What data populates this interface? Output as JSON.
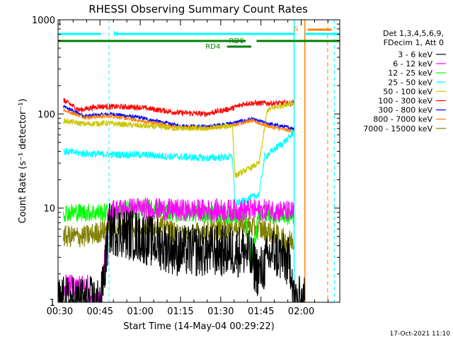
{
  "chart_data": {
    "type": "line",
    "title": "RHESSI Observing Summary Count Rates",
    "xlabel": "Start Time (14-May-04 00:29:22)",
    "ylabel": "Count Rate (s⁻¹ detector⁻¹)",
    "yscale": "log",
    "ylim": [
      1,
      1000
    ],
    "xlim_minutes": [
      0,
      105
    ],
    "x_ticks": [
      "00:30",
      "00:45",
      "01:00",
      "01:15",
      "01:30",
      "01:45",
      "02:00"
    ],
    "y_ticks": [
      "1",
      "10",
      "100",
      "1000"
    ],
    "grid": false,
    "legend_position": "right",
    "legend_header": [
      "Det 1,3,4,5,6,9,",
      "FDecim 1, Att 0"
    ],
    "series": [
      {
        "name": "3 - 6 keV",
        "color": "#000000",
        "values": [
          [
            0,
            1
          ],
          [
            16,
            1
          ],
          [
            19,
            6
          ],
          [
            30,
            5
          ],
          [
            45,
            3.5
          ],
          [
            60,
            3.5
          ],
          [
            70,
            3.5
          ],
          [
            75,
            2
          ],
          [
            80,
            3.5
          ],
          [
            87,
            2.5
          ],
          [
            88,
            1
          ],
          [
            92,
            1
          ]
        ]
      },
      {
        "name": "6 - 12 keV",
        "color": "#ff00ff",
        "values": [
          [
            2,
            1.5
          ],
          [
            11,
            1.5
          ],
          [
            12,
            1
          ],
          [
            16,
            1
          ],
          [
            19,
            9.5
          ],
          [
            30,
            10
          ],
          [
            45,
            9.5
          ],
          [
            60,
            9.5
          ],
          [
            70,
            9.5
          ],
          [
            80,
            9.5
          ],
          [
            88,
            9
          ]
        ]
      },
      {
        "name": "12 - 25 keV",
        "color": "#00ff00",
        "values": [
          [
            2,
            9
          ],
          [
            19,
            9
          ],
          [
            30,
            10
          ],
          [
            45,
            9
          ],
          [
            60,
            8.5
          ],
          [
            70,
            8
          ],
          [
            72,
            2.5
          ],
          [
            75,
            9
          ],
          [
            88,
            8
          ]
        ]
      },
      {
        "name": "25 - 50 keV",
        "color": "#00ffff",
        "values": [
          [
            2,
            40
          ],
          [
            10,
            38
          ],
          [
            20,
            37
          ],
          [
            30,
            37
          ],
          [
            45,
            35
          ],
          [
            55,
            34
          ],
          [
            65,
            35
          ],
          [
            66,
            11
          ],
          [
            75,
            14
          ],
          [
            77,
            35
          ],
          [
            86,
            55
          ],
          [
            88,
            65
          ]
        ]
      },
      {
        "name": "50 - 100 keV",
        "color": "#c8c800",
        "values": [
          [
            2,
            85
          ],
          [
            10,
            78
          ],
          [
            18,
            80
          ],
          [
            30,
            75
          ],
          [
            45,
            70
          ],
          [
            55,
            70
          ],
          [
            65,
            75
          ],
          [
            66,
            22
          ],
          [
            75,
            30
          ],
          [
            78,
            110
          ],
          [
            86,
            130
          ],
          [
            88,
            130
          ]
        ]
      },
      {
        "name": "100 - 300 keV",
        "color": "#ff0000",
        "values": [
          [
            2,
            140
          ],
          [
            8,
            110
          ],
          [
            15,
            120
          ],
          [
            30,
            118
          ],
          [
            45,
            103
          ],
          [
            55,
            100
          ],
          [
            65,
            115
          ],
          [
            70,
            130
          ],
          [
            75,
            130
          ],
          [
            78,
            130
          ],
          [
            88,
            130
          ]
        ]
      },
      {
        "name": "300 - 800 keV",
        "color": "#0000ff",
        "values": [
          [
            2,
            120
          ],
          [
            10,
            95
          ],
          [
            20,
            100
          ],
          [
            30,
            92
          ],
          [
            45,
            75
          ],
          [
            55,
            73
          ],
          [
            65,
            80
          ],
          [
            72,
            88
          ],
          [
            80,
            77
          ],
          [
            88,
            70
          ]
        ]
      },
      {
        "name": "800 - 7000 keV",
        "color": "#ff8000",
        "values": [
          [
            2,
            110
          ],
          [
            10,
            92
          ],
          [
            20,
            95
          ],
          [
            30,
            85
          ],
          [
            45,
            72
          ],
          [
            55,
            70
          ],
          [
            65,
            76
          ],
          [
            72,
            85
          ],
          [
            80,
            72
          ],
          [
            88,
            65
          ]
        ]
      },
      {
        "name": "7000 - 15000 keV",
        "color": "#808000",
        "values": [
          [
            2,
            5
          ],
          [
            10,
            5
          ],
          [
            19,
            6
          ],
          [
            30,
            6.5
          ],
          [
            40,
            6.5
          ],
          [
            45,
            5
          ],
          [
            60,
            6
          ],
          [
            70,
            6.5
          ],
          [
            75,
            6
          ],
          [
            80,
            5.5
          ],
          [
            85,
            4.5
          ],
          [
            88,
            4.5
          ]
        ]
      }
    ],
    "annotations": [
      {
        "label": "N",
        "color": "#00ffff"
      },
      {
        "label": "RD0",
        "color": "#008000"
      },
      {
        "label": "RD4",
        "color": "#008000"
      },
      {
        "label": "S",
        "color": "#ff8000"
      }
    ],
    "footer_date": "17-Oct-2021 11:10"
  }
}
